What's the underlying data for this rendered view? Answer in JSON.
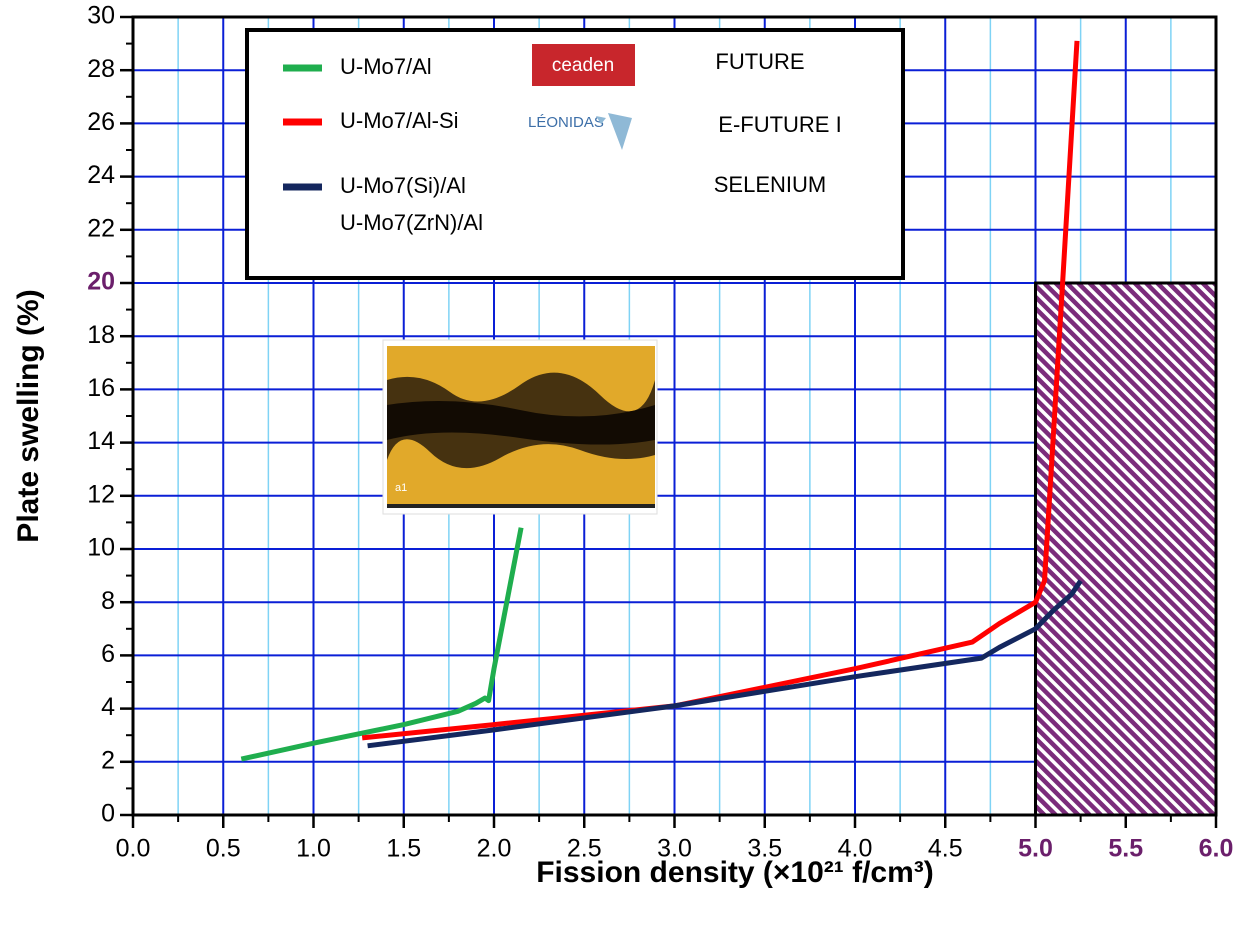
{
  "chart_data": {
    "type": "line",
    "xlabel": "Fission density (×10²¹ f/cm³)",
    "ylabel": "Plate swelling (%)",
    "xlim": [
      0,
      6
    ],
    "ylim": [
      0,
      30
    ],
    "xticks": [
      {
        "value": 0,
        "label": "0.0"
      },
      {
        "value": 0.5,
        "label": "0.5"
      },
      {
        "value": 1,
        "label": "1.0"
      },
      {
        "value": 1.5,
        "label": "1.5"
      },
      {
        "value": 2,
        "label": "2.0"
      },
      {
        "value": 2.5,
        "label": "2.5"
      },
      {
        "value": 3,
        "label": "3.0"
      },
      {
        "value": 3.5,
        "label": "3.5"
      },
      {
        "value": 4,
        "label": "4.0"
      },
      {
        "value": 4.5,
        "label": "4.5"
      },
      {
        "value": 5,
        "label": "5.0"
      },
      {
        "value": 5.5,
        "label": "5.5"
      },
      {
        "value": 6,
        "label": "6.0"
      }
    ],
    "xminorticks": [
      0.25,
      0.75,
      1.25,
      1.75,
      2.25,
      2.75,
      3.25,
      3.75,
      4.25,
      4.75,
      5.25,
      5.75
    ],
    "yticks": [
      0,
      2,
      4,
      6,
      8,
      10,
      12,
      14,
      16,
      18,
      20,
      22,
      24,
      26,
      28,
      30
    ],
    "yminorticks": [
      1,
      3,
      5,
      7,
      9,
      11,
      13,
      15,
      17,
      19,
      21,
      23,
      25,
      27,
      29
    ],
    "highlight_ticks_color": "#6b1f6b",
    "highlight_xticks_from": 5,
    "highlight_ytick": 20,
    "grid": true,
    "region": {
      "x": [
        5,
        6
      ],
      "y": [
        0,
        20
      ],
      "color": "#7b2c7b"
    },
    "series": [
      {
        "name": "U-Mo7/Al",
        "color": "#1fae4e",
        "x": [
          0.6,
          1.0,
          1.5,
          1.8,
          1.9,
          1.95,
          1.97,
          2.0,
          2.15
        ],
        "values": [
          2.1,
          2.7,
          3.4,
          3.9,
          4.2,
          4.4,
          4.3,
          5.5,
          10.8
        ]
      },
      {
        "name": "U-Mo7/Al-Si",
        "color": "#ff0000",
        "x": [
          1.27,
          2.0,
          3.0,
          4.0,
          4.65,
          4.8,
          5.0,
          5.05,
          5.15,
          5.23
        ],
        "values": [
          2.9,
          3.4,
          4.1,
          5.5,
          6.5,
          7.2,
          8.0,
          8.8,
          20,
          29.1
        ]
      },
      {
        "name": "U-Mo7(Si)/Al",
        "legend_note": "U-Mo7(ZrN)/Al",
        "color": "#14275e",
        "x": [
          1.3,
          2.0,
          3.0,
          4.0,
          4.7,
          4.8,
          5.0,
          5.1,
          5.2,
          5.25
        ],
        "values": [
          2.6,
          3.2,
          4.1,
          5.2,
          5.9,
          6.3,
          7.0,
          7.7,
          8.3,
          8.8
        ]
      }
    ],
    "logos": [
      "ceaden",
      "LÉONIDAS"
    ],
    "programs": [
      "FUTURE",
      "E-FUTURE I",
      "SELENIUM"
    ],
    "inset_label": "a1"
  }
}
